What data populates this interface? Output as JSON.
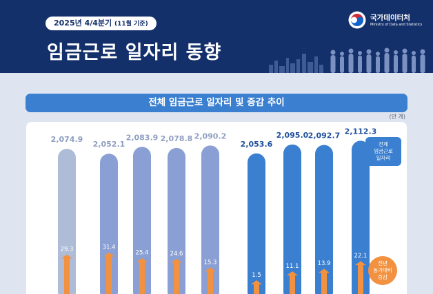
{
  "header": {
    "period": "2025년 4/4분기",
    "period_note": "(11월 기준)",
    "title": "임금근로 일자리 동향",
    "brand_ko": "국가데이터처",
    "brand_en": "Ministry of Data and Statistics"
  },
  "section": {
    "title": "전체 임금근로 일자리 및 증감 추이",
    "unit": "(만 개)"
  },
  "legend": {
    "total": [
      "전체",
      "임금근로",
      "일자리"
    ],
    "change": [
      "전년",
      "동기대비",
      "증감"
    ]
  },
  "colors": {
    "header_bg": "#14306b",
    "banner": "#3a7fd0",
    "bar_light": "#aebcd8",
    "bar_mid": "#8a9fd4",
    "bar_dark": "#3a7fd0",
    "arrow": "#f29241"
  },
  "chart_data": {
    "type": "bar",
    "series": [
      {
        "name": "전체 임금근로 일자리",
        "values": [
          2074.9,
          2052.1,
          2083.9,
          2078.8,
          2090.2,
          2053.6,
          2095.0,
          2092.7,
          2112.3
        ]
      },
      {
        "name": "전년 동기대비 증감",
        "values": [
          29.3,
          31.4,
          25.4,
          24.6,
          15.3,
          1.5,
          11.1,
          13.9,
          22.1
        ]
      }
    ],
    "total_labels": [
      "2,074.9",
      "2,052.1",
      "2,083.9",
      "2,078.8",
      "2,090.2",
      "2,053.6",
      "2,095.0",
      "2,092.7",
      "2,112.3"
    ],
    "change_labels": [
      "29.3",
      "31.4",
      "25.4",
      "24.6",
      "15.3",
      "1.5",
      "11.1",
      "13.9",
      "22.1"
    ],
    "groups": [
      "light",
      "mid",
      "mid",
      "mid",
      "mid",
      "dark",
      "dark",
      "dark",
      "dark"
    ]
  }
}
